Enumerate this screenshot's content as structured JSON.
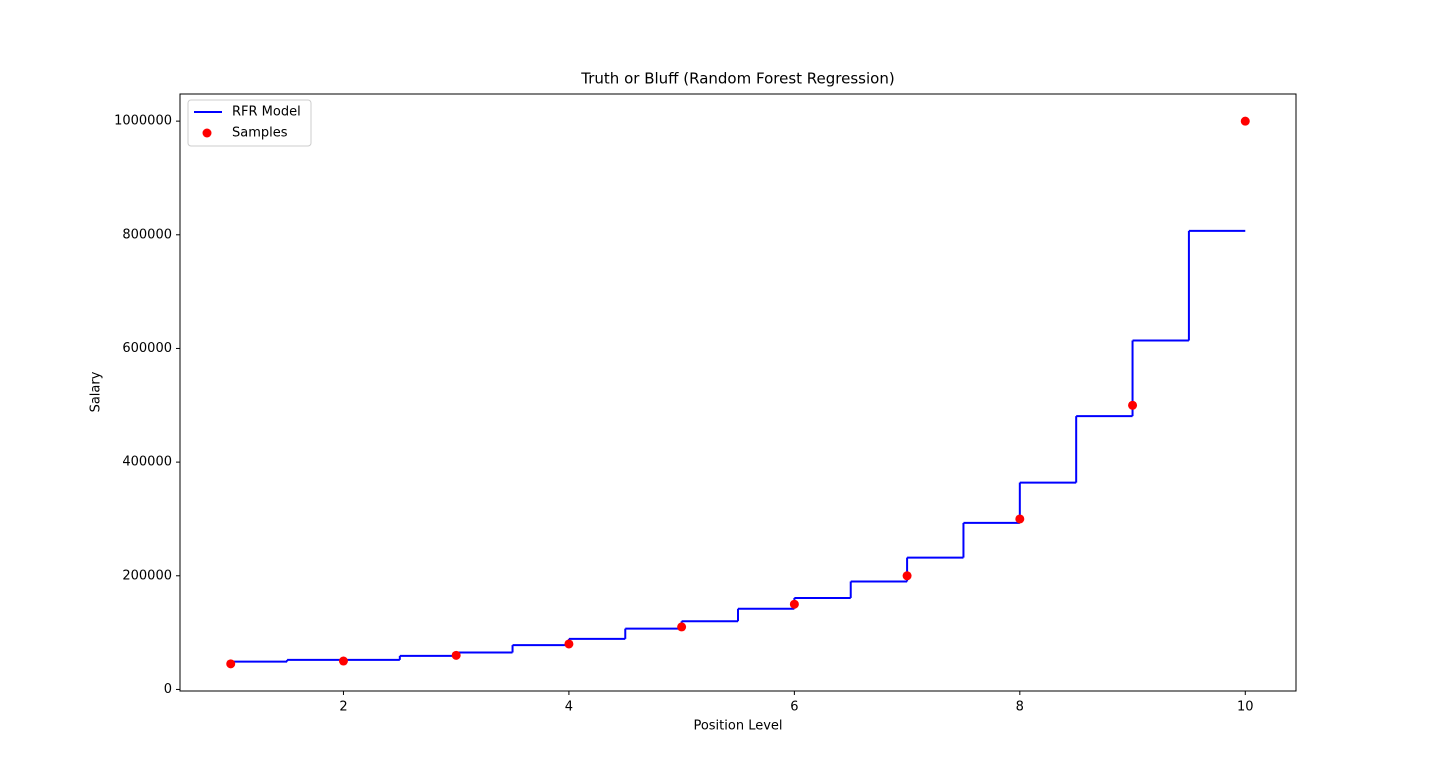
{
  "chart_data": {
    "type": "line",
    "title": "Truth or Bluff (Random Forest Regression)",
    "x_label": "Position Level",
    "y_label": "Salary",
    "xlim": [
      0.55,
      10.45
    ],
    "ylim": [
      -2750,
      1047750
    ],
    "xticks": [
      2,
      4,
      6,
      8,
      10
    ],
    "yticks": [
      0,
      200000,
      400000,
      600000,
      800000,
      1000000
    ],
    "legend": "upper left",
    "series": [
      {
        "name": "RFR Model",
        "color": "#0000ff",
        "drawstyle": "steps-post",
        "x": [
          1,
          1.5,
          2.5,
          3,
          3.5,
          4,
          4.5,
          5,
          5.5,
          6,
          6.5,
          7,
          7.5,
          8,
          8.5,
          9,
          9.5,
          10
        ],
        "values": [
          49000,
          52000,
          59000,
          65000,
          78000,
          89000,
          107000,
          120000,
          142000,
          161000,
          190000,
          232000,
          293000,
          364000,
          481000,
          614000,
          807000,
          807000
        ]
      },
      {
        "name": "Samples",
        "color": "#ff0000",
        "type": "scatter",
        "x": [
          1,
          2,
          3,
          4,
          5,
          6,
          7,
          8,
          9,
          10
        ],
        "values": [
          45000,
          50000,
          60000,
          80000,
          110000,
          150000,
          200000,
          300000,
          500000,
          1000000
        ]
      }
    ]
  }
}
